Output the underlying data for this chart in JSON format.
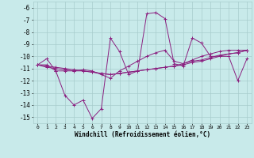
{
  "xlabel": "Windchill (Refroidissement éolien,°C)",
  "x": [
    0,
    1,
    2,
    3,
    4,
    5,
    6,
    7,
    8,
    9,
    10,
    11,
    12,
    13,
    14,
    15,
    16,
    17,
    18,
    19,
    20,
    21,
    22,
    23
  ],
  "series": [
    [
      -10.7,
      -10.2,
      -11.2,
      -13.2,
      -14.0,
      -13.6,
      -15.1,
      -14.3,
      -8.5,
      -9.6,
      -11.5,
      -11.2,
      -6.5,
      -6.4,
      -6.9,
      -10.6,
      -10.8,
      -8.5,
      -8.9,
      -10.0,
      -10.0,
      -10.0,
      -12.0,
      -10.2
    ],
    [
      -10.7,
      -10.7,
      -11.2,
      -11.2,
      -11.2,
      -11.1,
      -11.2,
      -11.5,
      -11.8,
      -11.2,
      -10.8,
      -10.4,
      -10.0,
      -9.7,
      -9.5,
      -10.4,
      -10.6,
      -10.3,
      -10.0,
      -9.8,
      -9.6,
      -9.5,
      -9.5,
      -9.5
    ],
    [
      -10.7,
      -10.8,
      -10.9,
      -11.0,
      -11.1,
      -11.2,
      -11.3,
      -11.4,
      -11.5,
      -11.4,
      -11.3,
      -11.2,
      -11.1,
      -11.0,
      -10.9,
      -10.8,
      -10.6,
      -10.4,
      -10.3,
      -10.1,
      -9.9,
      -9.8,
      -9.7,
      -9.5
    ],
    [
      -10.7,
      -10.9,
      -11.0,
      -11.1,
      -11.2,
      -11.2,
      -11.3,
      -11.4,
      -11.5,
      -11.4,
      -11.3,
      -11.2,
      -11.1,
      -11.0,
      -10.9,
      -10.8,
      -10.7,
      -10.5,
      -10.4,
      -10.2,
      -10.0,
      -9.8,
      -9.7,
      -9.5
    ]
  ],
  "line_color": "#8b2080",
  "bg_color": "#c8eaea",
  "grid_color": "#a8cccc",
  "ylim": [
    -15.5,
    -5.5
  ],
  "yticks": [
    -6,
    -7,
    -8,
    -9,
    -10,
    -11,
    -12,
    -13,
    -14,
    -15
  ],
  "xlim": [
    -0.5,
    23.5
  ],
  "marker": "+"
}
